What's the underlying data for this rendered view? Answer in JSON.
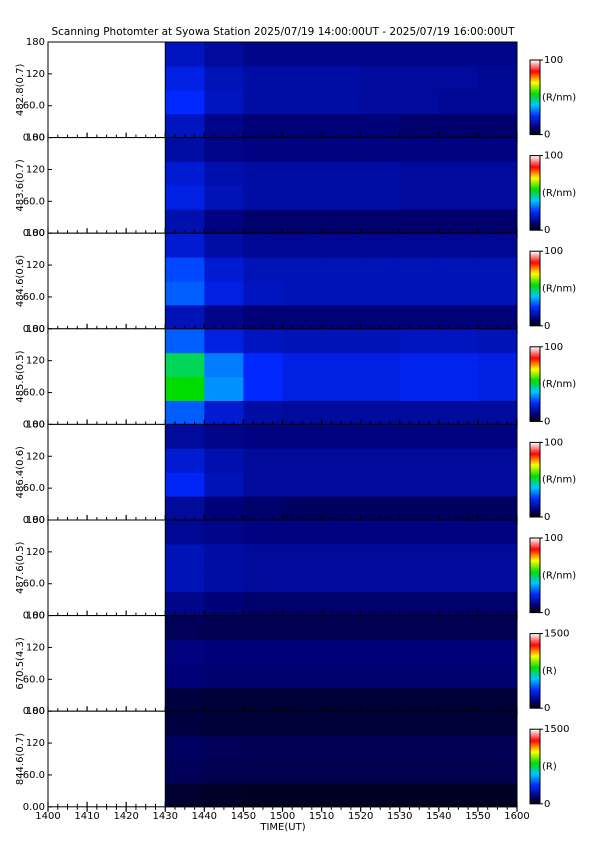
{
  "chart_data": {
    "type": "heatmap",
    "title": "Scanning Photomter at Syowa Station 2025/07/19 14:00:00UT - 2025/07/19 16:00:00UT",
    "xlabel": "TIME(UT)",
    "x_tick_labels": [
      "1400",
      "1410",
      "1420",
      "1430",
      "1440",
      "1450",
      "1500",
      "1510",
      "1520",
      "1530",
      "1540",
      "1550",
      "1600"
    ],
    "panels": [
      {
        "ylabel": "482.8(0.7)",
        "ylim": [
          0,
          180
        ],
        "yticks": [
          {
            "value": 0,
            "label": "0.00"
          },
          {
            "value": 60,
            "label": "60.0"
          },
          120,
          180
        ],
        "clim": [
          0,
          100
        ],
        "cticks": [
          0,
          100
        ],
        "clabel": "(R/nm)",
        "z": [
          [
            null,
            null,
            null,
            18,
            12,
            10,
            10,
            10,
            10,
            9,
            9,
            9
          ],
          [
            null,
            null,
            null,
            25,
            18,
            15,
            15,
            15,
            14,
            14,
            13,
            13
          ],
          [
            null,
            null,
            null,
            22,
            17,
            15,
            15,
            15,
            14,
            14,
            14,
            13
          ],
          [
            null,
            null,
            null,
            18,
            14,
            12,
            12,
            12,
            12,
            12,
            12,
            12
          ]
        ]
      },
      {
        "ylabel": "483.6(0.7)",
        "ylim": [
          0,
          180
        ],
        "yticks": [
          {
            "value": 0,
            "label": "0.00"
          },
          {
            "value": 60,
            "label": "60.0"
          },
          120,
          180
        ],
        "clim": [
          0,
          100
        ],
        "cticks": [
          0,
          100
        ],
        "clabel": "(R/nm)",
        "z": [
          [
            null,
            null,
            null,
            16,
            11,
            9,
            9,
            9,
            9,
            9,
            9,
            9
          ],
          [
            null,
            null,
            null,
            22,
            17,
            15,
            15,
            15,
            15,
            14,
            14,
            14
          ],
          [
            null,
            null,
            null,
            20,
            16,
            15,
            15,
            15,
            15,
            14,
            14,
            14
          ],
          [
            null,
            null,
            null,
            15,
            12,
            11,
            11,
            11,
            11,
            11,
            11,
            11
          ]
        ]
      },
      {
        "ylabel": "484.6(0.6)",
        "ylim": [
          0,
          180
        ],
        "yticks": [
          {
            "value": 0,
            "label": "0.00"
          },
          {
            "value": 60,
            "label": "60.0"
          },
          120,
          180
        ],
        "clim": [
          0,
          100
        ],
        "cticks": [
          0,
          100
        ],
        "clabel": "(R/nm)",
        "z": [
          [
            null,
            null,
            null,
            17,
            12,
            10,
            10,
            10,
            10,
            10,
            10,
            10
          ],
          [
            null,
            null,
            null,
            30,
            22,
            18,
            17,
            17,
            17,
            17,
            17,
            17
          ],
          [
            null,
            null,
            null,
            28,
            20,
            17,
            17,
            17,
            17,
            17,
            17,
            17
          ],
          [
            null,
            null,
            null,
            20,
            15,
            13,
            13,
            13,
            13,
            13,
            13,
            13
          ]
        ]
      },
      {
        "ylabel": "485.6(0.5)",
        "ylim": [
          0,
          180
        ],
        "yticks": [
          {
            "value": 0,
            "label": "0.00"
          },
          {
            "value": 60,
            "label": "60.0"
          },
          120,
          180
        ],
        "clim": [
          0,
          100
        ],
        "cticks": [
          0,
          100
        ],
        "clabel": "(R/nm)",
        "z": [
          [
            null,
            null,
            null,
            30,
            20,
            15,
            14,
            14,
            14,
            14,
            14,
            14
          ],
          [
            null,
            null,
            null,
            55,
            35,
            25,
            22,
            22,
            22,
            23,
            23,
            22
          ],
          [
            null,
            null,
            null,
            50,
            33,
            25,
            22,
            22,
            22,
            23,
            23,
            22
          ],
          [
            null,
            null,
            null,
            30,
            22,
            18,
            17,
            17,
            17,
            18,
            18,
            17
          ]
        ]
      },
      {
        "ylabel": "486.4(0.6)",
        "ylim": [
          0,
          180
        ],
        "yticks": [
          {
            "value": 0,
            "label": "0.00"
          },
          {
            "value": 60,
            "label": "60.0"
          },
          120,
          180
        ],
        "clim": [
          0,
          100
        ],
        "cticks": [
          0,
          100
        ],
        "clabel": "(R/nm)",
        "z": [
          [
            null,
            null,
            null,
            14,
            10,
            9,
            8,
            8,
            8,
            8,
            8,
            8
          ],
          [
            null,
            null,
            null,
            24,
            17,
            14,
            14,
            14,
            14,
            14,
            14,
            14
          ],
          [
            null,
            null,
            null,
            20,
            16,
            14,
            14,
            14,
            14,
            14,
            14,
            14
          ],
          [
            null,
            null,
            null,
            14,
            12,
            11,
            11,
            11,
            11,
            11,
            11,
            11
          ]
        ]
      },
      {
        "ylabel": "487.6(0.5)",
        "ylim": [
          0,
          180
        ],
        "yticks": [
          {
            "value": 0,
            "label": "0.00"
          },
          {
            "value": 60,
            "label": "60.0"
          },
          120,
          180
        ],
        "clim": [
          0,
          100
        ],
        "cticks": [
          0,
          100
        ],
        "clabel": "(R/nm)",
        "z": [
          [
            null,
            null,
            null,
            12,
            10,
            9,
            9,
            9,
            9,
            9,
            9,
            9
          ],
          [
            null,
            null,
            null,
            17,
            15,
            14,
            14,
            14,
            14,
            14,
            14,
            14
          ],
          [
            null,
            null,
            null,
            17,
            15,
            14,
            14,
            14,
            14,
            14,
            14,
            14
          ],
          [
            null,
            null,
            null,
            13,
            12,
            11,
            11,
            11,
            11,
            11,
            11,
            11
          ]
        ]
      },
      {
        "ylabel": "670.5(4.3)",
        "ylim": [
          0,
          180
        ],
        "yticks": [
          {
            "value": 0,
            "label": "0.00"
          },
          {
            "value": 60,
            "label": "60.0"
          },
          120,
          180
        ],
        "clim": [
          0,
          1500
        ],
        "cticks": [
          0,
          1500
        ],
        "clabel": "(R)",
        "z": [
          [
            null,
            null,
            null,
            80,
            70,
            70,
            70,
            70,
            70,
            70,
            70,
            70
          ],
          [
            null,
            null,
            null,
            150,
            140,
            140,
            140,
            140,
            140,
            140,
            140,
            140
          ],
          [
            null,
            null,
            null,
            160,
            150,
            150,
            150,
            150,
            150,
            150,
            150,
            150
          ],
          [
            null,
            null,
            null,
            110,
            100,
            100,
            100,
            100,
            100,
            100,
            100,
            100
          ]
        ]
      },
      {
        "ylabel": "844.6(0.7)",
        "ylim": [
          0,
          180
        ],
        "yticks": [
          {
            "value": 0,
            "label": "0.00"
          },
          {
            "value": 60,
            "label": "60.0"
          },
          120,
          180
        ],
        "clim": [
          0,
          1500
        ],
        "cticks": [
          0,
          1500
        ],
        "clabel": "(R)",
        "z": [
          [
            null,
            null,
            null,
            60,
            50,
            45,
            45,
            45,
            45,
            45,
            45,
            45
          ],
          [
            null,
            null,
            null,
            110,
            100,
            100,
            100,
            100,
            100,
            100,
            100,
            100
          ],
          [
            null,
            null,
            null,
            120,
            110,
            105,
            105,
            105,
            105,
            105,
            105,
            105
          ],
          [
            null,
            null,
            null,
            80,
            70,
            70,
            70,
            70,
            70,
            70,
            70,
            70
          ]
        ]
      }
    ]
  }
}
